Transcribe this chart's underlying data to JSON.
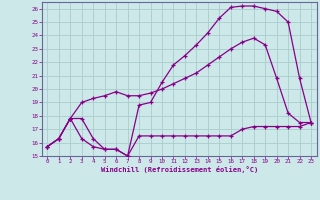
{
  "xlabel": "Windchill (Refroidissement éolien,°C)",
  "bg_color": "#cce8e8",
  "grid_color": "#aacccc",
  "line_color": "#880088",
  "xlim": [
    -0.5,
    23.5
  ],
  "ylim": [
    15,
    26.5
  ],
  "xticks": [
    0,
    1,
    2,
    3,
    4,
    5,
    6,
    7,
    8,
    9,
    10,
    11,
    12,
    13,
    14,
    15,
    16,
    17,
    18,
    19,
    20,
    21,
    22,
    23
  ],
  "yticks": [
    15,
    16,
    17,
    18,
    19,
    20,
    21,
    22,
    23,
    24,
    25,
    26
  ],
  "curve1_x": [
    0,
    1,
    2,
    3,
    4,
    5,
    6,
    7,
    8,
    9,
    10,
    11,
    12,
    13,
    14,
    15,
    16,
    17,
    18,
    19,
    20,
    21,
    22,
    23
  ],
  "curve1_y": [
    15.7,
    16.3,
    17.8,
    17.8,
    16.3,
    15.5,
    15.5,
    15.0,
    18.8,
    19.0,
    20.5,
    21.8,
    22.5,
    23.3,
    24.2,
    25.3,
    26.1,
    26.2,
    26.2,
    26.0,
    25.8,
    25.0,
    20.8,
    17.5
  ],
  "curve2_x": [
    0,
    1,
    2,
    3,
    4,
    5,
    6,
    7,
    8,
    9,
    10,
    11,
    12,
    13,
    14,
    15,
    16,
    17,
    18,
    19,
    20,
    21,
    22,
    23
  ],
  "curve2_y": [
    15.7,
    16.3,
    17.8,
    19.0,
    19.3,
    19.5,
    19.8,
    19.5,
    19.5,
    19.7,
    20.0,
    20.4,
    20.8,
    21.2,
    21.8,
    22.4,
    23.0,
    23.5,
    23.8,
    23.3,
    20.8,
    18.2,
    17.5,
    17.5
  ],
  "curve3_x": [
    0,
    1,
    2,
    3,
    4,
    5,
    6,
    7,
    8,
    9,
    10,
    11,
    12,
    13,
    14,
    15,
    16,
    17,
    18,
    19,
    20,
    21,
    22,
    23
  ],
  "curve3_y": [
    15.7,
    16.3,
    17.8,
    16.3,
    15.7,
    15.5,
    15.5,
    15.0,
    16.5,
    16.5,
    16.5,
    16.5,
    16.5,
    16.5,
    16.5,
    16.5,
    16.5,
    17.0,
    17.2,
    17.2,
    17.2,
    17.2,
    17.2,
    17.5
  ]
}
